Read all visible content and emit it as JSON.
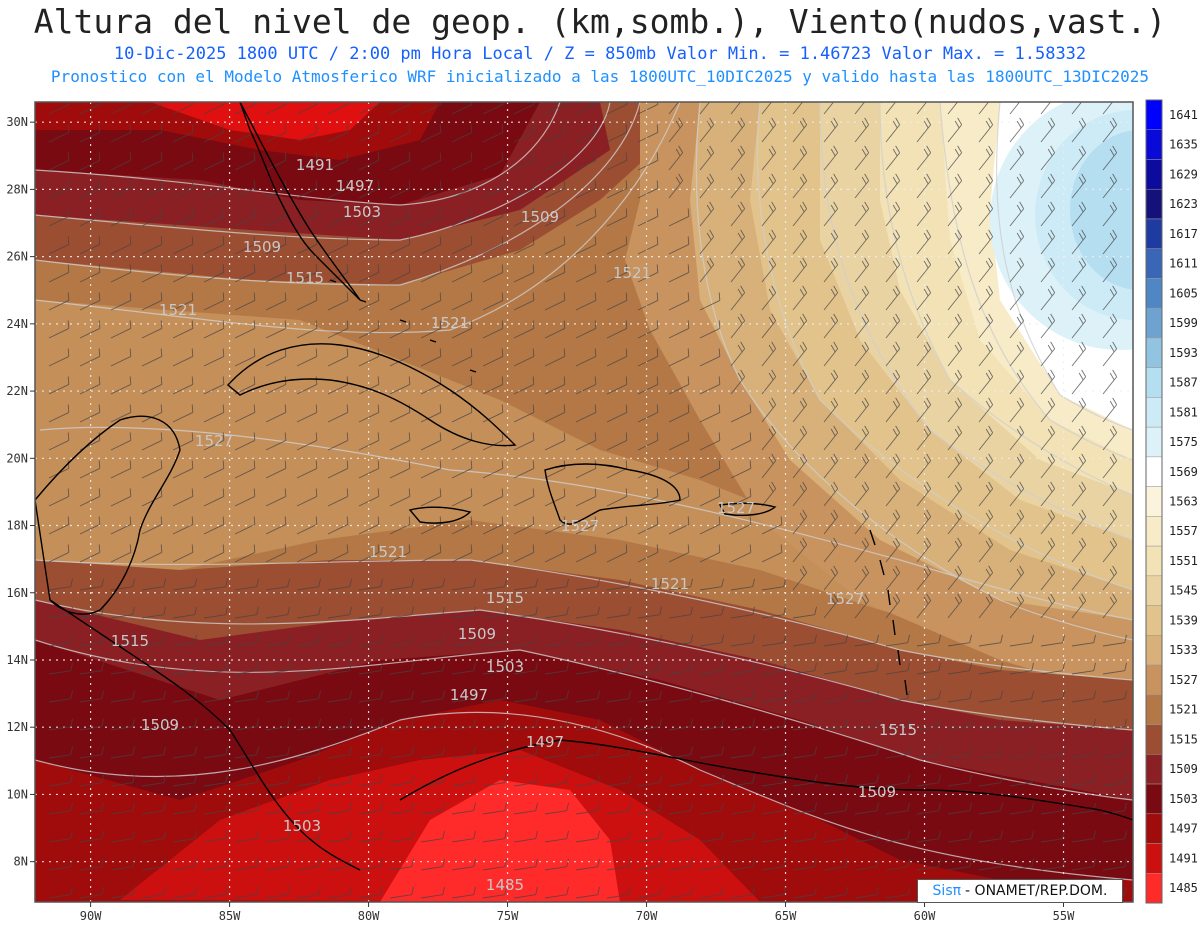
{
  "header": {
    "title": "Altura del nivel de geop. (km,somb.), Viento(nudos,vast.)",
    "subtitle_line1": "10-Dic-2025   1800 UTC / 2:00 pm Hora Local / Z = 850mb     Valor Min. = 1.46723  Valor Max. = 1.58332",
    "subtitle_line2": "Pronostico con el Modelo Atmosferico WRF inicializado a las 1800UTC_10DIC2025 y valido hasta las  1800UTC_13DIC2025"
  },
  "map": {
    "lon_range": [
      -92,
      -52.5
    ],
    "lat_range": [
      6.8,
      30.6
    ],
    "lon_ticks": [
      "90W",
      "85W",
      "80W",
      "75W",
      "70W",
      "65W",
      "60W",
      "55W"
    ],
    "lat_ticks": [
      "30N",
      "28N",
      "26N",
      "24N",
      "22N",
      "20N",
      "18N",
      "16N",
      "14N",
      "12N",
      "10N",
      "8N"
    ],
    "gridlines": "dotted",
    "contour_labels": [
      "1491",
      "1497",
      "1503",
      "1509",
      "1509",
      "1515",
      "1521",
      "1521",
      "1521",
      "1527",
      "1527",
      "1521",
      "1521",
      "1515",
      "1509",
      "1503",
      "1497",
      "1497",
      "1515",
      "1509",
      "1509",
      "1515",
      "1503",
      "1485",
      "1527",
      "1527"
    ]
  },
  "legend": {
    "levels": [
      "1641",
      "1635",
      "1629",
      "1623",
      "1617",
      "1611",
      "1605",
      "1599",
      "1593",
      "1587",
      "1581",
      "1575",
      "1569",
      "1563",
      "1557",
      "1551",
      "1545",
      "1539",
      "1533",
      "1527",
      "1521",
      "1515",
      "1509",
      "1503",
      "1497",
      "1491",
      "1485"
    ],
    "colors": [
      "#0000ff",
      "#0a0ad8",
      "#0d0a9e",
      "#14127a",
      "#1f3aa0",
      "#3a66b8",
      "#4f86c4",
      "#6ea2d0",
      "#90c4e0",
      "#b5def0",
      "#cdebf6",
      "#dcf2f8",
      "#ffffff",
      "#fbf3dc",
      "#f7ebc8",
      "#f2e2b6",
      "#ead3a3",
      "#e2c38c",
      "#d8b07a",
      "#c8935e",
      "#b47846",
      "#9c4e32",
      "#8a2024",
      "#7a0a12",
      "#a00c0c",
      "#cc1010",
      "#ff2a2a"
    ]
  },
  "credit": {
    "logo": "Sisπ",
    "text": " - ONAMET/REP.DOM."
  }
}
